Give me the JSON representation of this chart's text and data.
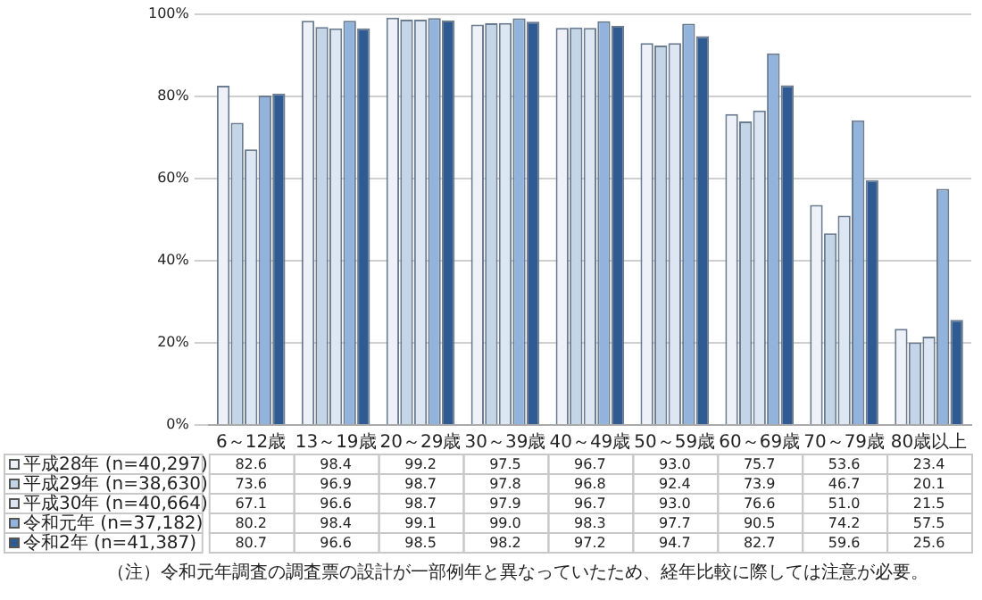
{
  "chart_data": {
    "type": "bar",
    "categories": [
      "6～12歳",
      "13～19歳",
      "20～29歳",
      "30～39歳",
      "40～49歳",
      "50～59歳",
      "60～69歳",
      "70～79歳",
      "80歳以上"
    ],
    "series": [
      {
        "name": "平成28年 (n=40,297)",
        "color": "#eef2f8",
        "values": [
          82.6,
          98.4,
          99.2,
          97.5,
          96.7,
          93.0,
          75.7,
          53.6,
          23.4
        ],
        "value_labels": [
          "82.6",
          "98.4",
          "99.2",
          "97.5",
          "96.7",
          "93.0",
          "75.7",
          "53.6",
          "23.4"
        ]
      },
      {
        "name": "平成29年 (n=38,630)",
        "color": "#c5d5e8",
        "values": [
          73.6,
          96.9,
          98.7,
          97.8,
          96.8,
          92.4,
          73.9,
          46.7,
          20.1
        ],
        "value_labels": [
          "73.6",
          "96.9",
          "98.7",
          "97.8",
          "96.8",
          "92.4",
          "73.9",
          "46.7",
          "20.1"
        ]
      },
      {
        "name": "平成30年 (n=40,664)",
        "color": "#dde7f3",
        "values": [
          67.1,
          96.6,
          98.7,
          97.9,
          96.7,
          93.0,
          76.6,
          51.0,
          21.5
        ],
        "value_labels": [
          "67.1",
          "96.6",
          "98.7",
          "97.9",
          "96.7",
          "93.0",
          "76.6",
          "51.0",
          "21.5"
        ]
      },
      {
        "name": "令和元年 (n=37,182)",
        "color": "#92b4dc",
        "values": [
          80.2,
          98.4,
          99.1,
          99.0,
          98.3,
          97.7,
          90.5,
          74.2,
          57.5
        ],
        "value_labels": [
          "80.2",
          "98.4",
          "99.1",
          "99.0",
          "98.3",
          "97.7",
          "90.5",
          "74.2",
          "57.5"
        ]
      },
      {
        "name": "令和2年 (n=41,387)",
        "color": "#2f5b92",
        "values": [
          80.7,
          96.6,
          98.5,
          98.2,
          97.2,
          94.7,
          82.7,
          59.6,
          25.6
        ],
        "value_labels": [
          "80.7",
          "96.6",
          "98.5",
          "98.2",
          "97.2",
          "94.7",
          "82.7",
          "59.6",
          "25.6"
        ]
      }
    ],
    "ylim": [
      0,
      100
    ],
    "yticks": [
      {
        "value": 0,
        "label": "0%"
      },
      {
        "value": 20,
        "label": "20%"
      },
      {
        "value": 40,
        "label": "40%"
      },
      {
        "value": 60,
        "label": "60%"
      },
      {
        "value": 80,
        "label": "80%"
      },
      {
        "value": 100,
        "label": "100%"
      }
    ],
    "grid": "y",
    "legend": "bottom",
    "annotations": [
      "（注）令和元年調査の調査票の設計が一部例年と異なっていたため、経年比較に際しては注意が必要。"
    ]
  }
}
